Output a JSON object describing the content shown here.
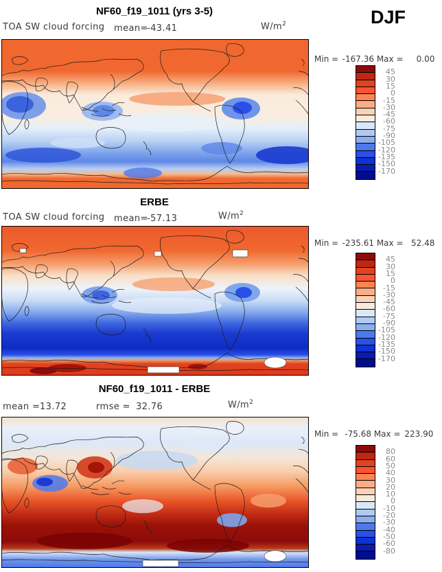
{
  "figure": {
    "season": "DJF",
    "units_base": "W/m",
    "units_exp": "2"
  },
  "colorbar_colors": [
    "#8E0B0B",
    "#BE2714",
    "#E2431F",
    "#FC5430",
    "#FB8455",
    "#FCAD85",
    "#FBD2B5",
    "#F9EBDB",
    "#D9E8FA",
    "#AFCBF4",
    "#8AAEF0",
    "#4E79EE",
    "#2950E8",
    "#1032D2",
    "#0A1CB0",
    "#000D8C"
  ],
  "panels": [
    {
      "title": "NF60_f19_1011 (yrs 3-5)",
      "field_label": "TOA SW cloud forcing",
      "mean_label": "mean=",
      "mean_value": "-43.41",
      "minmax": {
        "min_label": "Min =",
        "min_value": "-167.36",
        "max_label": "Max =",
        "max_value": "0.00"
      },
      "colorbar": {
        "tick_labels": [
          "45",
          "30",
          "15",
          "0",
          "-15",
          "-30",
          "-45",
          "-60",
          "-75",
          "-90",
          "-105",
          "-120",
          "-135",
          "-150",
          "-170"
        ]
      }
    },
    {
      "title": "ERBE",
      "field_label": "TOA SW cloud forcing",
      "mean_label": "mean=",
      "mean_value": "-57.13",
      "minmax": {
        "min_label": "Min =",
        "min_value": "-235.61",
        "max_label": "Max =",
        "max_value": "52.48"
      },
      "colorbar": {
        "tick_labels": [
          "45",
          "30",
          "15",
          "0",
          "-15",
          "-30",
          "-45",
          "-60",
          "-75",
          "-90",
          "-105",
          "-120",
          "-135",
          "-150",
          "-170"
        ]
      }
    },
    {
      "title": "NF60_f19_1011 - ERBE",
      "mean_label": "mean =",
      "mean_value": "13.72",
      "rmse_label": "rmse =",
      "rmse_value": "32.76",
      "minmax": {
        "min_label": "Min =",
        "min_value": "-75.68",
        "max_label": "Max =",
        "max_value": "223.90"
      },
      "colorbar": {
        "tick_labels": [
          "80",
          "60",
          "50",
          "40",
          "30",
          "20",
          "10",
          "0",
          "-10",
          "-20",
          "-30",
          "-40",
          "-50",
          "-60",
          "-80"
        ]
      }
    }
  ],
  "chart_data": {
    "type": "heatmap",
    "season": "DJF",
    "variable": "TOA SW cloud forcing",
    "units": "W/m2",
    "projection": "global lat-lon, Pacific-centered",
    "palette": [
      "#8E0B0B",
      "#BE2714",
      "#E2431F",
      "#FC5430",
      "#FB8455",
      "#FCAD85",
      "#FBD2B5",
      "#F9EBDB",
      "#D9E8FA",
      "#AFCBF4",
      "#8AAEF0",
      "#4E79EE",
      "#2950E8",
      "#1032D2",
      "#0A1CB0",
      "#000D8C"
    ],
    "panels": [
      {
        "name": "NF60_f19_1011 (yrs 3-5)",
        "mean": -43.41,
        "min": -167.36,
        "max": 0.0,
        "contour_levels": [
          45,
          30,
          15,
          0,
          -15,
          -30,
          -45,
          -60,
          -75,
          -90,
          -105,
          -120,
          -135,
          -150,
          -170
        ],
        "description": "orange high NH latitudes, cream subtropics, blue cloud-forcing minima over Africa/Indonesia/South America, strong blue band 40-60S, orange Antarctica"
      },
      {
        "name": "ERBE",
        "mean": -57.13,
        "min": -235.61,
        "max": 52.48,
        "contour_levels": [
          45,
          30,
          15,
          0,
          -15,
          -30,
          -45,
          -60,
          -75,
          -90,
          -105,
          -120,
          -135,
          -150,
          -170
        ],
        "description": "observed field: orange-red NH, cream tropics, wide deep-blue Southern Ocean band, red Antarctica with white missing-data gaps"
      },
      {
        "name": "NF60_f19_1011 - ERBE",
        "mean": 13.72,
        "rmse": 32.76,
        "min": -75.68,
        "max": 223.9,
        "contour_levels": [
          80,
          60,
          50,
          40,
          30,
          20,
          10,
          0,
          -10,
          -20,
          -30,
          -40,
          -50,
          -60,
          -80
        ],
        "description": "difference: pale/blue NH, red positive bias in SH midlatitudes deepening to dark red 50-65S, blue negative band along Antarctic coast, white missing-data gaps"
      }
    ]
  }
}
